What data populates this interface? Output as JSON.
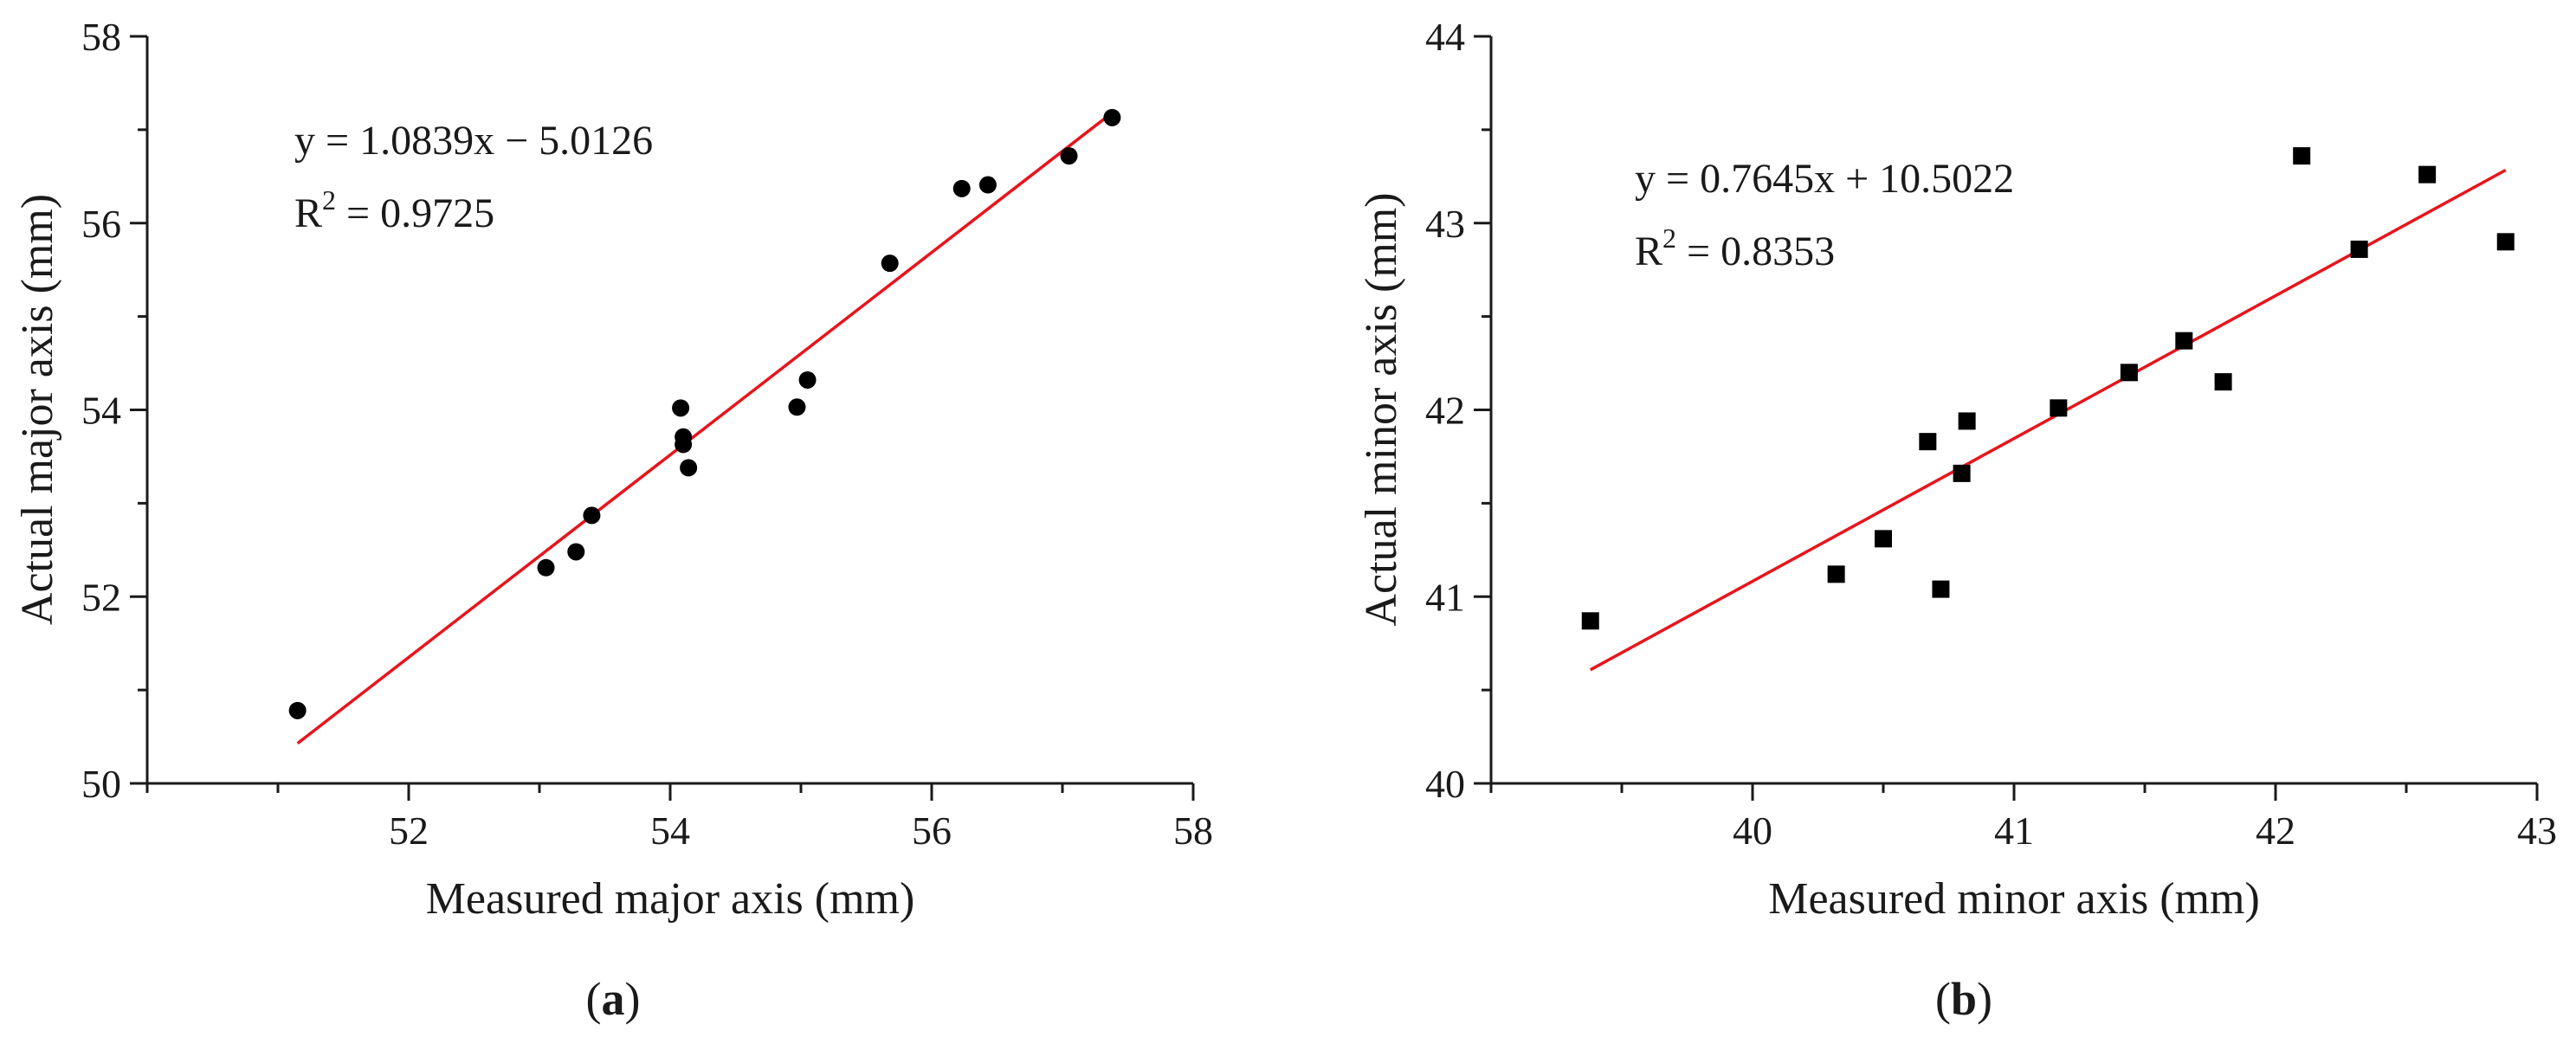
{
  "chart_data": [
    {
      "type": "scatter",
      "panel_label": "a",
      "xlabel": "Measured major axis (mm)",
      "ylabel": "Actual major axis (mm)",
      "xlim": [
        50.0,
        58.0
      ],
      "ylim": [
        50,
        58
      ],
      "xticks": [
        52,
        54,
        56,
        58
      ],
      "yticks": [
        50,
        52,
        54,
        56,
        58
      ],
      "xtick_labels": [
        "52",
        "54",
        "56",
        "58"
      ],
      "ytick_labels": [
        "50",
        "52",
        "54",
        "56",
        "58"
      ],
      "marker": "circle",
      "fit_color": "#e8141c",
      "equation": "y = 1.0839x − 5.0126",
      "r2_prefix": "R",
      "r2_superscript": "2",
      "r2_value": " = 0.9725",
      "fit": {
        "slope": 1.0839,
        "intercept": -5.0126,
        "x_range": [
          51.15,
          57.38
        ]
      },
      "points": [
        {
          "x": 51.15,
          "y": 50.78
        },
        {
          "x": 53.05,
          "y": 52.31
        },
        {
          "x": 53.28,
          "y": 52.48
        },
        {
          "x": 53.4,
          "y": 52.87
        },
        {
          "x": 54.08,
          "y": 54.02
        },
        {
          "x": 54.1,
          "y": 53.71
        },
        {
          "x": 54.1,
          "y": 53.63
        },
        {
          "x": 54.14,
          "y": 53.38
        },
        {
          "x": 54.97,
          "y": 54.03
        },
        {
          "x": 55.05,
          "y": 54.32
        },
        {
          "x": 55.68,
          "y": 55.57
        },
        {
          "x": 56.23,
          "y": 56.37
        },
        {
          "x": 56.43,
          "y": 56.41
        },
        {
          "x": 57.05,
          "y": 56.72
        },
        {
          "x": 57.38,
          "y": 57.13
        }
      ]
    },
    {
      "type": "scatter",
      "panel_label": "b",
      "xlabel": "Measured minor axis (mm)",
      "ylabel": "Actual minor axis (mm)",
      "xlim": [
        39.0,
        43.0
      ],
      "ylim": [
        40,
        44
      ],
      "xticks": [
        40,
        41,
        42,
        43
      ],
      "yticks": [
        40,
        41,
        42,
        43,
        44
      ],
      "xtick_labels": [
        "40",
        "41",
        "42",
        "43"
      ],
      "ytick_labels": [
        "40",
        "41",
        "42",
        "43",
        "44"
      ],
      "marker": "square",
      "fit_color": "#e8141c",
      "equation": "y = 0.7645x + 10.5022",
      "r2_prefix": "R",
      "r2_superscript": "2",
      "r2_value": " = 0.8353",
      "fit": {
        "slope": 0.7645,
        "intercept": 10.5022,
        "x_range": [
          39.38,
          42.88
        ]
      },
      "points": [
        {
          "x": 39.38,
          "y": 40.87
        },
        {
          "x": 40.32,
          "y": 41.12
        },
        {
          "x": 40.5,
          "y": 41.31
        },
        {
          "x": 40.67,
          "y": 41.83
        },
        {
          "x": 40.72,
          "y": 41.04
        },
        {
          "x": 40.8,
          "y": 41.66
        },
        {
          "x": 40.82,
          "y": 41.94
        },
        {
          "x": 41.17,
          "y": 42.01
        },
        {
          "x": 41.44,
          "y": 42.2
        },
        {
          "x": 41.65,
          "y": 42.37
        },
        {
          "x": 41.8,
          "y": 42.15
        },
        {
          "x": 42.1,
          "y": 43.36
        },
        {
          "x": 42.32,
          "y": 42.86
        },
        {
          "x": 42.58,
          "y": 43.26
        },
        {
          "x": 42.88,
          "y": 42.9
        }
      ]
    }
  ]
}
